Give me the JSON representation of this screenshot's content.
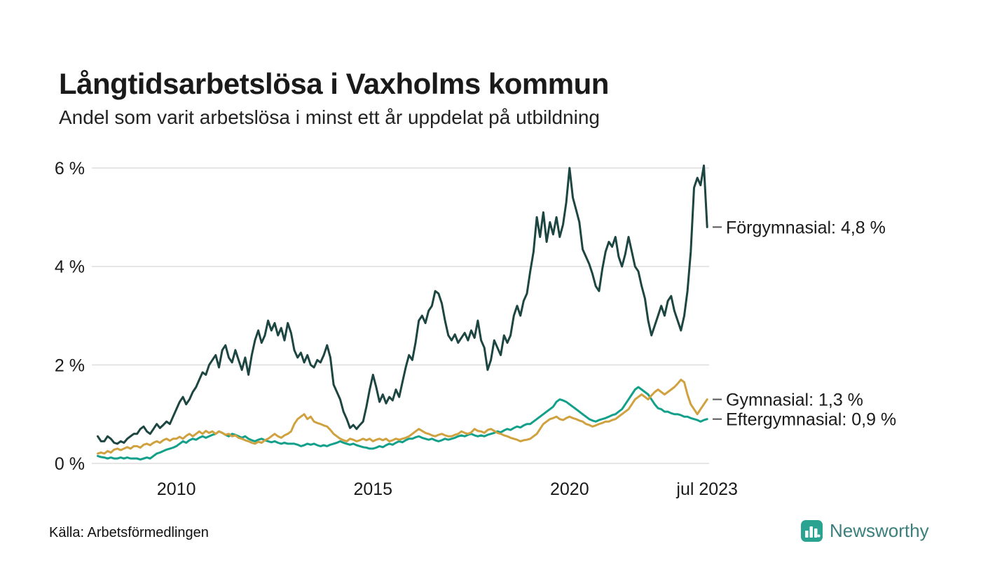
{
  "header": {
    "title": "Långtidsarbetslösa i Vaxholms kommun",
    "subtitle": "Andel som varit arbetslösa i minst ett år uppdelat på utbildning"
  },
  "footer": {
    "source": "Källa: Arbetsförmedlingen",
    "brand": "Newsworthy",
    "brand_color": "#2aa390"
  },
  "chart_data": {
    "type": "line",
    "title": "Långtidsarbetslösa i Vaxholms kommun",
    "subtitle": "Andel som varit arbetslösa i minst ett år uppdelat på utbildning",
    "unit": "%",
    "grid": "horizontal",
    "grid_color": "#dddddd",
    "x_start_year": 2008,
    "x_step_months": 1,
    "x_axis": {
      "range": [
        2007.92,
        2023.55
      ],
      "ticks": [
        {
          "value": 2010,
          "label": "2010"
        },
        {
          "value": 2015,
          "label": "2015"
        },
        {
          "value": 2020,
          "label": "2020"
        },
        {
          "value": 2023.5,
          "label": "jul 2023"
        }
      ]
    },
    "y_axis": {
      "range": [
        0,
        6
      ],
      "ticks": [
        {
          "value": 0,
          "label": "0 %"
        },
        {
          "value": 2,
          "label": "2 %"
        },
        {
          "value": 4,
          "label": "4 %"
        },
        {
          "value": 6,
          "label": "6 %"
        }
      ]
    },
    "series": [
      {
        "id": "eftergymnasial",
        "name": "Eftergymnasial",
        "color": "#13a08a",
        "end_label": "Eftergymnasial: 0,9 %",
        "end_value": "0,9 %",
        "values": [
          0.15,
          0.13,
          0.12,
          0.1,
          0.12,
          0.1,
          0.1,
          0.12,
          0.1,
          0.12,
          0.1,
          0.1,
          0.1,
          0.08,
          0.1,
          0.12,
          0.1,
          0.15,
          0.2,
          0.22,
          0.25,
          0.28,
          0.3,
          0.32,
          0.35,
          0.4,
          0.45,
          0.42,
          0.47,
          0.5,
          0.48,
          0.52,
          0.55,
          0.52,
          0.55,
          0.58,
          0.6,
          0.65,
          0.62,
          0.58,
          0.55,
          0.6,
          0.58,
          0.55,
          0.52,
          0.55,
          0.5,
          0.47,
          0.45,
          0.48,
          0.5,
          0.47,
          0.45,
          0.43,
          0.45,
          0.42,
          0.4,
          0.42,
          0.4,
          0.4,
          0.4,
          0.38,
          0.35,
          0.37,
          0.4,
          0.38,
          0.4,
          0.37,
          0.35,
          0.37,
          0.35,
          0.38,
          0.4,
          0.42,
          0.45,
          0.42,
          0.4,
          0.38,
          0.4,
          0.37,
          0.35,
          0.33,
          0.32,
          0.3,
          0.3,
          0.32,
          0.35,
          0.33,
          0.37,
          0.4,
          0.38,
          0.42,
          0.45,
          0.43,
          0.47,
          0.5,
          0.5,
          0.53,
          0.55,
          0.52,
          0.5,
          0.48,
          0.5,
          0.47,
          0.45,
          0.47,
          0.5,
          0.48,
          0.5,
          0.52,
          0.55,
          0.57,
          0.55,
          0.58,
          0.6,
          0.57,
          0.55,
          0.57,
          0.55,
          0.58,
          0.6,
          0.62,
          0.65,
          0.63,
          0.67,
          0.7,
          0.68,
          0.72,
          0.75,
          0.73,
          0.77,
          0.8,
          0.8,
          0.85,
          0.9,
          0.95,
          1.0,
          1.05,
          1.1,
          1.15,
          1.25,
          1.3,
          1.28,
          1.25,
          1.2,
          1.15,
          1.1,
          1.05,
          1.0,
          0.95,
          0.9,
          0.87,
          0.85,
          0.88,
          0.9,
          0.92,
          0.95,
          0.98,
          1.0,
          1.05,
          1.1,
          1.2,
          1.3,
          1.4,
          1.5,
          1.55,
          1.5,
          1.45,
          1.4,
          1.3,
          1.2,
          1.12,
          1.1,
          1.05,
          1.05,
          1.02,
          1.0,
          1.0,
          0.98,
          0.95,
          0.95,
          0.92,
          0.9,
          0.88,
          0.85,
          0.88,
          0.9
        ]
      },
      {
        "id": "gymnasial",
        "name": "Gymnasial",
        "color": "#d0a13f",
        "end_label": "Gymnasial: 1,3 %",
        "end_value": "1,3 %",
        "values": [
          0.2,
          0.22,
          0.2,
          0.25,
          0.22,
          0.28,
          0.3,
          0.27,
          0.3,
          0.33,
          0.3,
          0.35,
          0.35,
          0.32,
          0.38,
          0.4,
          0.37,
          0.42,
          0.45,
          0.42,
          0.47,
          0.5,
          0.46,
          0.5,
          0.5,
          0.54,
          0.5,
          0.56,
          0.6,
          0.55,
          0.6,
          0.65,
          0.6,
          0.66,
          0.62,
          0.65,
          0.6,
          0.65,
          0.62,
          0.58,
          0.6,
          0.55,
          0.57,
          0.52,
          0.5,
          0.47,
          0.45,
          0.42,
          0.4,
          0.44,
          0.42,
          0.47,
          0.5,
          0.55,
          0.6,
          0.55,
          0.52,
          0.57,
          0.6,
          0.65,
          0.8,
          0.9,
          0.95,
          1.0,
          0.9,
          0.95,
          0.85,
          0.82,
          0.8,
          0.77,
          0.75,
          0.68,
          0.6,
          0.55,
          0.5,
          0.47,
          0.45,
          0.5,
          0.48,
          0.45,
          0.47,
          0.5,
          0.47,
          0.5,
          0.45,
          0.48,
          0.5,
          0.47,
          0.5,
          0.45,
          0.47,
          0.5,
          0.48,
          0.5,
          0.52,
          0.55,
          0.6,
          0.65,
          0.7,
          0.66,
          0.62,
          0.6,
          0.57,
          0.55,
          0.58,
          0.6,
          0.57,
          0.55,
          0.55,
          0.58,
          0.6,
          0.65,
          0.62,
          0.6,
          0.63,
          0.7,
          0.66,
          0.65,
          0.62,
          0.68,
          0.7,
          0.66,
          0.62,
          0.6,
          0.57,
          0.55,
          0.52,
          0.5,
          0.48,
          0.45,
          0.47,
          0.48,
          0.5,
          0.55,
          0.6,
          0.7,
          0.8,
          0.85,
          0.9,
          0.92,
          0.95,
          0.9,
          0.88,
          0.92,
          0.95,
          0.92,
          0.9,
          0.87,
          0.85,
          0.8,
          0.78,
          0.75,
          0.77,
          0.8,
          0.82,
          0.85,
          0.85,
          0.88,
          0.9,
          0.95,
          1.0,
          1.05,
          1.1,
          1.2,
          1.3,
          1.35,
          1.4,
          1.35,
          1.3,
          1.38,
          1.45,
          1.5,
          1.45,
          1.4,
          1.45,
          1.5,
          1.55,
          1.62,
          1.7,
          1.65,
          1.4,
          1.2,
          1.1,
          1.0,
          1.1,
          1.2,
          1.3
        ]
      },
      {
        "id": "forgymnasial",
        "name": "Förgymnasial",
        "color": "#1d4642",
        "end_label": "Förgymnasial: 4,8 %",
        "end_value": "4,8 %",
        "values": [
          0.55,
          0.45,
          0.45,
          0.55,
          0.5,
          0.42,
          0.4,
          0.45,
          0.42,
          0.5,
          0.55,
          0.6,
          0.6,
          0.7,
          0.75,
          0.65,
          0.6,
          0.7,
          0.8,
          0.72,
          0.78,
          0.85,
          0.8,
          0.95,
          1.1,
          1.25,
          1.35,
          1.2,
          1.3,
          1.45,
          1.55,
          1.7,
          1.85,
          1.8,
          2.0,
          2.1,
          2.2,
          1.95,
          2.3,
          2.4,
          2.15,
          2.05,
          2.3,
          2.1,
          1.9,
          2.15,
          1.8,
          2.2,
          2.5,
          2.7,
          2.45,
          2.6,
          2.9,
          2.7,
          2.85,
          2.6,
          2.75,
          2.5,
          2.85,
          2.65,
          2.3,
          2.15,
          2.25,
          2.05,
          2.2,
          2.0,
          1.95,
          2.1,
          2.05,
          2.2,
          2.4,
          2.15,
          1.6,
          1.45,
          1.3,
          1.05,
          0.9,
          0.72,
          0.78,
          0.7,
          0.78,
          0.85,
          1.15,
          1.5,
          1.8,
          1.55,
          1.25,
          1.4,
          1.22,
          1.35,
          1.28,
          1.5,
          1.35,
          1.65,
          1.95,
          2.2,
          2.1,
          2.45,
          2.9,
          3.0,
          2.85,
          3.1,
          3.2,
          3.5,
          3.45,
          3.25,
          2.9,
          2.6,
          2.5,
          2.62,
          2.45,
          2.55,
          2.65,
          2.5,
          2.7,
          2.55,
          2.9,
          2.5,
          2.35,
          1.9,
          2.1,
          2.5,
          2.35,
          2.2,
          2.6,
          2.45,
          2.6,
          3.0,
          3.2,
          3.0,
          3.3,
          3.45,
          3.9,
          4.3,
          5.0,
          4.6,
          5.1,
          4.5,
          4.9,
          4.65,
          5.0,
          4.6,
          4.85,
          5.3,
          6.0,
          5.4,
          5.15,
          4.9,
          4.35,
          4.2,
          4.05,
          3.85,
          3.6,
          3.5,
          3.95,
          4.3,
          4.5,
          4.4,
          4.6,
          4.2,
          4.0,
          4.25,
          4.6,
          4.3,
          4.0,
          3.9,
          3.6,
          3.35,
          2.9,
          2.6,
          2.8,
          3.0,
          3.2,
          3.0,
          3.3,
          3.4,
          3.1,
          2.9,
          2.7,
          3.0,
          3.5,
          4.3,
          5.6,
          5.8,
          5.65,
          6.05,
          4.8
        ]
      }
    ]
  }
}
